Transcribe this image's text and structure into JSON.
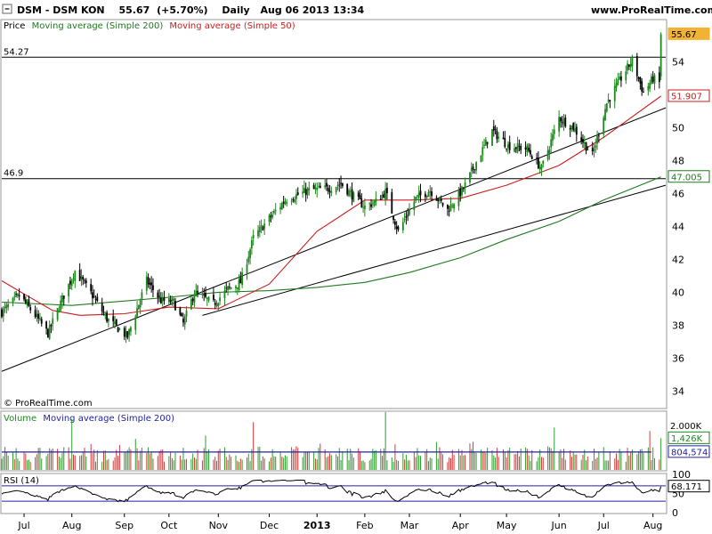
{
  "header": {
    "symbol": "DSM - DSM KON",
    "last": "55.67",
    "change": "(+5.70%)",
    "period": "Daily",
    "datetime": "Aug 06 2013 13:34",
    "site": "www.ProRealTime.com",
    "copyright": "© ProRealTime.com"
  },
  "legends": {
    "price_label": "Price",
    "ma200_label": "Moving average (Simple 200)",
    "ma50_label": "Moving average (Simple 50)",
    "volume_label": "Volume",
    "volume_ma_label": "Moving average (Simple 200)",
    "rsi_label": "RSI (14)"
  },
  "colors": {
    "up": "#1b8a1b",
    "down": "#000000",
    "ma50": "#cc1c1c",
    "ma200": "#1f7a1f",
    "trendline": "#000000",
    "volume_ma": "#2222aa",
    "rsi_line": "#000000",
    "rsi_band": "#2222aa",
    "last_badge": "#f2b233",
    "ma50_badge": "#cc1c1c",
    "ma200_badge": "#1f7a1f",
    "volume_badge": "#2222aa"
  },
  "chart_data": [
    {
      "type": "candlestick",
      "panel": "price",
      "ylim": [
        33,
        56.5
      ],
      "y_ticks": [
        34,
        36,
        38,
        40,
        42,
        44,
        46,
        48,
        50,
        52,
        54
      ],
      "x_ticks": [
        {
          "label": "Jul",
          "date": "2012-07-02"
        },
        {
          "label": "Aug",
          "date": "2012-08-01"
        },
        {
          "label": "Sep",
          "date": "2012-09-03"
        },
        {
          "label": "Oct",
          "date": "2012-10-01"
        },
        {
          "label": "Nov",
          "date": "2012-11-01"
        },
        {
          "label": "Dec",
          "date": "2012-12-03"
        },
        {
          "label": "2013",
          "date": "2013-01-02",
          "bold": true
        },
        {
          "label": "Feb",
          "date": "2013-02-01"
        },
        {
          "label": "Mar",
          "date": "2013-03-01"
        },
        {
          "label": "Apr",
          "date": "2013-04-02"
        },
        {
          "label": "May",
          "date": "2013-05-01"
        },
        {
          "label": "Jun",
          "date": "2013-06-03"
        },
        {
          "label": "Jul",
          "date": "2013-07-01"
        },
        {
          "label": "Aug",
          "date": "2013-08-01"
        }
      ],
      "close": [
        {
          "date": "2012-06-18",
          "value": 38.8
        },
        {
          "date": "2012-06-29",
          "value": 39.8
        },
        {
          "date": "2012-07-09",
          "value": 38.6
        },
        {
          "date": "2012-07-17",
          "value": 37.5
        },
        {
          "date": "2012-07-26",
          "value": 39.6
        },
        {
          "date": "2012-08-03",
          "value": 41.3
        },
        {
          "date": "2012-08-14",
          "value": 39.8
        },
        {
          "date": "2012-08-23",
          "value": 38.4
        },
        {
          "date": "2012-09-05",
          "value": 37.3
        },
        {
          "date": "2012-09-17",
          "value": 40.7
        },
        {
          "date": "2012-09-26",
          "value": 39.5
        },
        {
          "date": "2012-10-04",
          "value": 39.4
        },
        {
          "date": "2012-10-10",
          "value": 38.1
        },
        {
          "date": "2012-10-17",
          "value": 40.0
        },
        {
          "date": "2012-10-29",
          "value": 39.3
        },
        {
          "date": "2012-11-07",
          "value": 40.2
        },
        {
          "date": "2012-11-15",
          "value": 40.6
        },
        {
          "date": "2012-11-23",
          "value": 43.3
        },
        {
          "date": "2012-12-04",
          "value": 44.6
        },
        {
          "date": "2012-12-13",
          "value": 45.6
        },
        {
          "date": "2012-12-28",
          "value": 46.2
        },
        {
          "date": "2013-01-09",
          "value": 46.3
        },
        {
          "date": "2013-01-17",
          "value": 46.6
        },
        {
          "date": "2013-01-24",
          "value": 45.9
        },
        {
          "date": "2013-02-01",
          "value": 45.2
        },
        {
          "date": "2013-02-08",
          "value": 45.5
        },
        {
          "date": "2013-02-14",
          "value": 46.1
        },
        {
          "date": "2013-02-22",
          "value": 43.7
        },
        {
          "date": "2013-03-05",
          "value": 45.7
        },
        {
          "date": "2013-03-14",
          "value": 46.2
        },
        {
          "date": "2013-03-25",
          "value": 45.0
        },
        {
          "date": "2013-04-04",
          "value": 46.3
        },
        {
          "date": "2013-04-12",
          "value": 47.9
        },
        {
          "date": "2013-04-22",
          "value": 49.8
        },
        {
          "date": "2013-05-02",
          "value": 48.9
        },
        {
          "date": "2013-05-14",
          "value": 48.7
        },
        {
          "date": "2013-05-23",
          "value": 47.5
        },
        {
          "date": "2013-06-03",
          "value": 50.6
        },
        {
          "date": "2013-06-12",
          "value": 50.0
        },
        {
          "date": "2013-06-24",
          "value": 48.3
        },
        {
          "date": "2013-07-03",
          "value": 51.5
        },
        {
          "date": "2013-07-12",
          "value": 53.0
        },
        {
          "date": "2013-07-19",
          "value": 54.1
        },
        {
          "date": "2013-07-26",
          "value": 52.1
        },
        {
          "date": "2013-08-01",
          "value": 53.0
        },
        {
          "date": "2013-08-05",
          "value": 52.7
        },
        {
          "date": "2013-08-06",
          "value": 55.67
        }
      ],
      "ma50": [
        {
          "date": "2012-06-18",
          "value": 40.7
        },
        {
          "date": "2012-07-02",
          "value": 39.9
        },
        {
          "date": "2012-07-20",
          "value": 38.9
        },
        {
          "date": "2012-08-06",
          "value": 38.6
        },
        {
          "date": "2012-09-03",
          "value": 38.7
        },
        {
          "date": "2012-10-01",
          "value": 39.1
        },
        {
          "date": "2012-11-01",
          "value": 39.0
        },
        {
          "date": "2012-12-03",
          "value": 40.5
        },
        {
          "date": "2013-01-02",
          "value": 43.7
        },
        {
          "date": "2013-02-01",
          "value": 45.6
        },
        {
          "date": "2013-03-01",
          "value": 45.6
        },
        {
          "date": "2013-04-02",
          "value": 45.7
        },
        {
          "date": "2013-05-01",
          "value": 46.5
        },
        {
          "date": "2013-06-03",
          "value": 47.7
        },
        {
          "date": "2013-07-01",
          "value": 49.4
        },
        {
          "date": "2013-08-06",
          "value": 51.907
        }
      ],
      "ma200": [
        {
          "date": "2012-06-18",
          "value": 39.4
        },
        {
          "date": "2012-08-01",
          "value": 39.2
        },
        {
          "date": "2012-10-01",
          "value": 39.7
        },
        {
          "date": "2012-11-01",
          "value": 40.0
        },
        {
          "date": "2012-12-03",
          "value": 40.1
        },
        {
          "date": "2013-01-02",
          "value": 40.3
        },
        {
          "date": "2013-02-01",
          "value": 40.6
        },
        {
          "date": "2013-03-01",
          "value": 41.2
        },
        {
          "date": "2013-04-02",
          "value": 42.1
        },
        {
          "date": "2013-05-01",
          "value": 43.2
        },
        {
          "date": "2013-06-03",
          "value": 44.3
        },
        {
          "date": "2013-07-01",
          "value": 45.6
        },
        {
          "date": "2013-08-06",
          "value": 47.005
        }
      ],
      "horizontal_levels": [
        {
          "value": 54.27,
          "label": "54.27"
        },
        {
          "value": 46.9,
          "label": "46.9"
        }
      ],
      "trendlines": [
        {
          "start": {
            "date": "2012-06-18",
            "value": 35.2
          },
          "end": {
            "date": "2013-08-09",
            "value": 51.2
          }
        },
        {
          "start": {
            "date": "2012-10-22",
            "value": 38.6
          },
          "end": {
            "date": "2013-08-09",
            "value": 46.5
          }
        }
      ],
      "badges": [
        {
          "value": 55.67,
          "label": "55.67",
          "kind": "last"
        },
        {
          "value": 51.907,
          "label": "51.907",
          "kind": "ma50"
        },
        {
          "value": 47.005,
          "label": "47.005",
          "kind": "ma200"
        }
      ]
    },
    {
      "type": "bar",
      "panel": "volume",
      "ylim": [
        0,
        2600000
      ],
      "y_ticks": [
        {
          "value": 2000000,
          "label": "2.000K"
        }
      ],
      "moving_average": 804574,
      "badges": [
        {
          "value": 1426000,
          "label": "1,426K",
          "kind": "volume"
        },
        {
          "value": 804574,
          "label": "804,574",
          "kind": "volume_ma"
        }
      ],
      "highlights": [
        {
          "date": "2012-08-01",
          "value": 2300000
        },
        {
          "date": "2012-11-23",
          "value": 2150000
        },
        {
          "date": "2013-02-14",
          "value": 2600000
        },
        {
          "date": "2013-05-31",
          "value": 1900000
        },
        {
          "date": "2013-07-30",
          "value": 1750000
        },
        {
          "date": "2013-08-06",
          "value": 1426000
        }
      ]
    },
    {
      "type": "line",
      "panel": "rsi",
      "ylim": [
        0,
        100
      ],
      "y_ticks": [
        0,
        50,
        100
      ],
      "bands": [
        30,
        70
      ],
      "last": 68.171,
      "badges": [
        {
          "value": 68.171,
          "label": "68.171",
          "kind": "rsi"
        }
      ]
    }
  ]
}
